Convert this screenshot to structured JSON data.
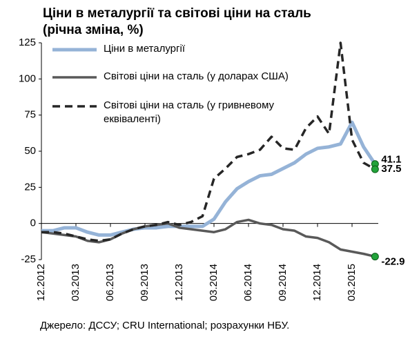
{
  "chart_data": {
    "type": "line",
    "title": "Ціни в металургії та світові ціни на сталь",
    "subtitle": "(річна зміна, %)",
    "source": "Джерело: ДССУ; CRU International; розрахунки НБУ.",
    "categories": [
      "12.2012",
      null,
      null,
      "03.2013",
      null,
      null,
      "06.2013",
      null,
      null,
      "09.2013",
      null,
      null,
      "12.2013",
      null,
      null,
      "03.2014",
      null,
      null,
      "06.2014",
      null,
      null,
      "09.2014",
      null,
      null,
      "12.2014",
      null,
      null,
      "03.2015",
      null,
      null
    ],
    "series": [
      {
        "name": "Ціни в металургії",
        "color": "#95b3d7",
        "style": "solid",
        "values": [
          -5,
          -5,
          -3,
          -3,
          -6,
          -8,
          -8,
          -6,
          -4,
          -3,
          -3,
          -2,
          -2,
          -2,
          -2,
          3,
          15,
          24,
          29,
          33,
          34,
          38,
          42,
          48,
          52,
          53,
          55,
          70,
          53,
          41.1
        ]
      },
      {
        "name": "Світові ціни на сталь (у доларах США)",
        "color": "#595959",
        "style": "solid",
        "values": [
          -6,
          -7,
          -8,
          -9,
          -12,
          -13,
          -11,
          -7,
          -4,
          -2,
          -1,
          0,
          -3,
          -4,
          -5,
          -6,
          -4,
          1,
          2.5,
          0,
          -1,
          -4,
          -5,
          -9,
          -10,
          -13,
          -18,
          -19.5,
          -21,
          -22.9
        ]
      },
      {
        "name": "Світові ціни на сталь (у гривневому еквіваленті)",
        "color": "#262626",
        "style": "dashed",
        "values": [
          -6,
          -6,
          -7,
          -9,
          -11,
          -12,
          -11,
          -7,
          -4,
          -2,
          -1,
          1,
          -1,
          1,
          5,
          31,
          38,
          46,
          48,
          51,
          60,
          52,
          51,
          66,
          74,
          62,
          125,
          58,
          42,
          37.5
        ]
      }
    ],
    "end_label_colors": [
      "#95b3d7",
      "#000000",
      "#7f7f7f"
    ],
    "ylim": [
      -25,
      125
    ],
    "yticks": [
      -25,
      0,
      25,
      50,
      75,
      100,
      125
    ],
    "grid": false
  }
}
